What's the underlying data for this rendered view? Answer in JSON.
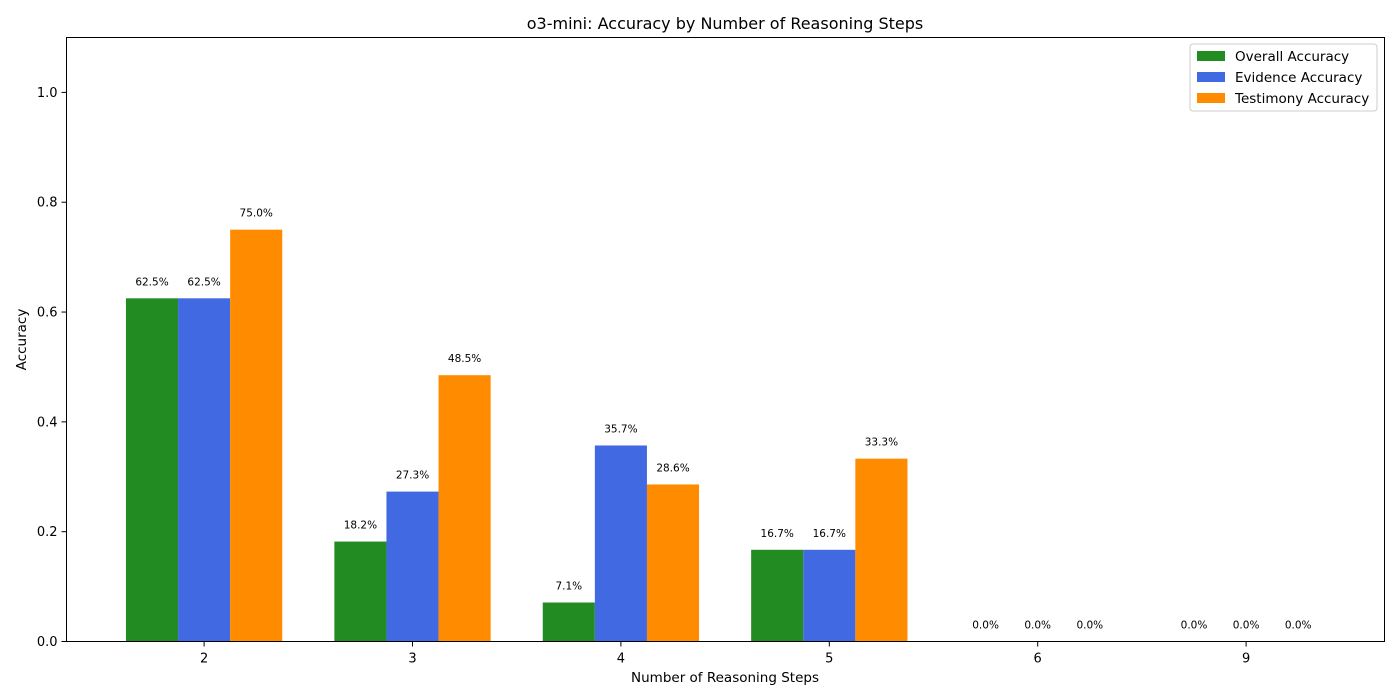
{
  "chart_data": {
    "type": "bar",
    "title": "o3-mini: Accuracy by Number of Reasoning Steps",
    "xlabel": "Number of Reasoning Steps",
    "ylabel": "Accuracy",
    "categories": [
      "2",
      "3",
      "4",
      "5",
      "6",
      "9"
    ],
    "series": [
      {
        "name": "Overall Accuracy",
        "color": "#228b22",
        "values": [
          0.625,
          0.182,
          0.071,
          0.167,
          0.0,
          0.0
        ],
        "labels": [
          "62.5%",
          "18.2%",
          "7.1%",
          "16.7%",
          "0.0%",
          "0.0%"
        ]
      },
      {
        "name": "Evidence Accuracy",
        "color": "#4169e1",
        "values": [
          0.625,
          0.273,
          0.357,
          0.167,
          0.0,
          0.0
        ],
        "labels": [
          "62.5%",
          "27.3%",
          "35.7%",
          "16.7%",
          "0.0%",
          "0.0%"
        ]
      },
      {
        "name": "Testimony Accuracy",
        "color": "#ff8c00",
        "values": [
          0.75,
          0.485,
          0.286,
          0.333,
          0.0,
          0.0
        ],
        "labels": [
          "75.0%",
          "48.5%",
          "28.6%",
          "33.3%",
          "0.0%",
          "0.0%"
        ]
      }
    ],
    "ylim": [
      0,
      1.1
    ],
    "yticks": [
      0.0,
      0.2,
      0.4,
      0.6,
      0.8,
      1.0
    ],
    "ytick_labels": [
      "0.0",
      "0.2",
      "0.4",
      "0.6",
      "0.8",
      "1.0"
    ],
    "grid": false,
    "legend_position": "top-right"
  }
}
